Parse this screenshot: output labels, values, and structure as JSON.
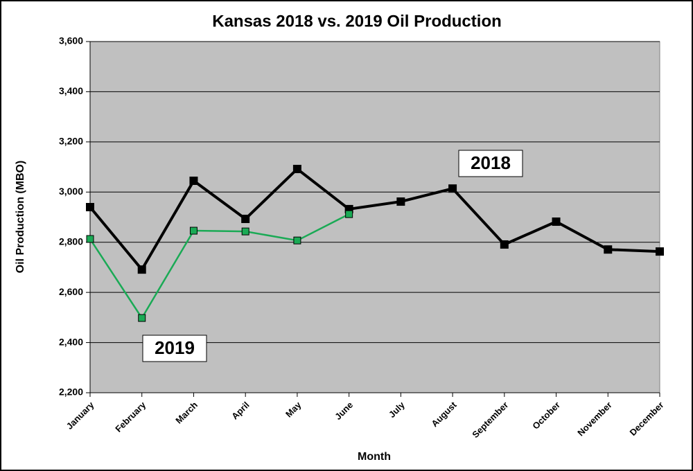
{
  "chart_data": {
    "type": "line",
    "title": "Kansas 2018 vs. 2019 Oil Production",
    "x_label": "Month",
    "y_label": "Oil Production (MBO)",
    "categories": [
      "January",
      "February",
      "March",
      "April",
      "May",
      "June",
      "July",
      "August",
      "September",
      "October",
      "November",
      "December"
    ],
    "series": [
      {
        "name": "2018",
        "color": "#000000",
        "values": [
          2940,
          2691,
          3045,
          2893,
          3092,
          2932,
          2962,
          3014,
          2791,
          2882,
          2771,
          2763
        ]
      },
      {
        "name": "2019",
        "color": "#1aaa55",
        "values": [
          2813,
          2498,
          2846,
          2843,
          2807,
          2912,
          null,
          null,
          null,
          null,
          null,
          null
        ]
      }
    ],
    "annotations": [
      {
        "text": "2018"
      },
      {
        "text": "2019"
      }
    ],
    "ylim": [
      2200,
      3600
    ],
    "yticks": [
      {
        "value": 2200,
        "label": "2,200"
      },
      {
        "value": 2400,
        "label": "2,400"
      },
      {
        "value": 2600,
        "label": "2,600"
      },
      {
        "value": 2800,
        "label": "2,800"
      },
      {
        "value": 3000,
        "label": "3,000"
      },
      {
        "value": 3200,
        "label": "3,200"
      },
      {
        "value": 3400,
        "label": "3,400"
      },
      {
        "value": 3600,
        "label": "3,600"
      }
    ],
    "grid": true,
    "plot_background": "#c0c0c0"
  }
}
